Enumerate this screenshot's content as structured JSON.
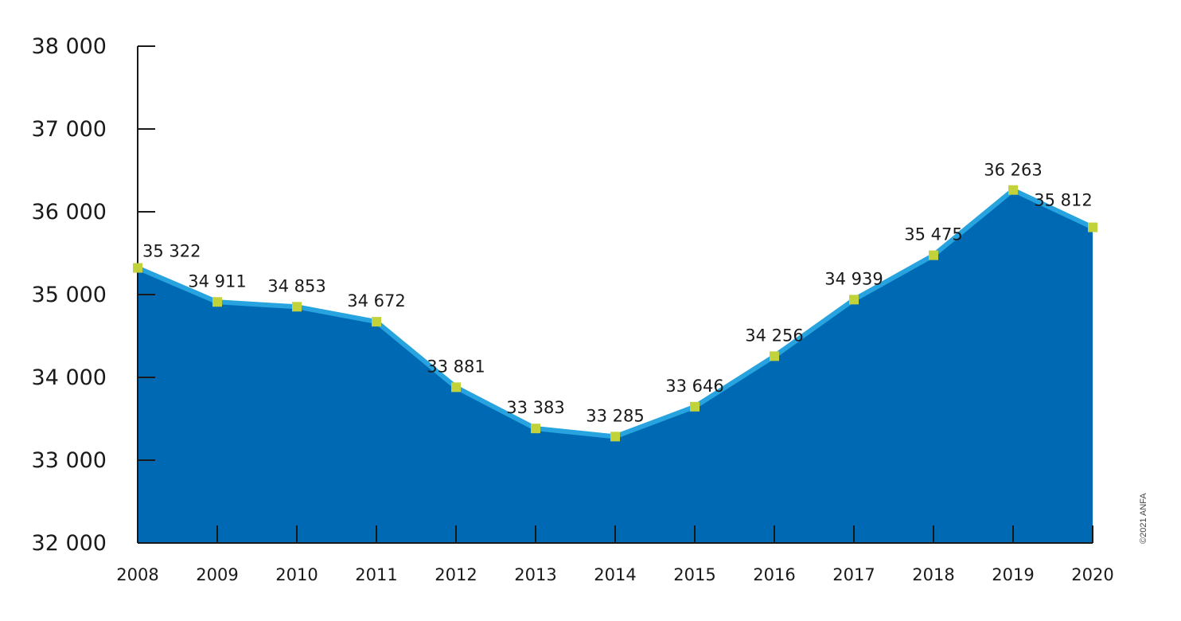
{
  "chart_data": {
    "type": "area",
    "x": [
      "2008",
      "2009",
      "2010",
      "2011",
      "2012",
      "2013",
      "2014",
      "2015",
      "2016",
      "2017",
      "2018",
      "2019",
      "2020"
    ],
    "values": [
      35322,
      34911,
      34853,
      34672,
      33881,
      33383,
      33285,
      33646,
      34256,
      34939,
      35475,
      36263,
      35812
    ],
    "data_labels": [
      "35 322",
      "34 911",
      "34 853",
      "34 672",
      "33 881",
      "33 383",
      "33 285",
      "33 646",
      "34 256",
      "34 939",
      "35 475",
      "36 263",
      "35 812"
    ],
    "ylim": [
      32000,
      38000
    ],
    "yticks": [
      38000,
      37000,
      36000,
      35000,
      34000,
      33000,
      32000
    ],
    "ytick_labels": [
      "38 000",
      "37 000",
      "36 000",
      "35 000",
      "34 000",
      "33 000",
      "32 000"
    ],
    "title": "",
    "xlabel": "",
    "ylabel": "",
    "grid": false,
    "legend": "none",
    "colors": {
      "area_fill": "#0069b4",
      "line": "#27a3df",
      "marker": "#c2d23a",
      "axis": "#1a1a1a",
      "label": "#1a1a1a",
      "highlight_label": "#e2231a"
    },
    "highlight_index": 12
  },
  "credit": "©2021 ANFA"
}
